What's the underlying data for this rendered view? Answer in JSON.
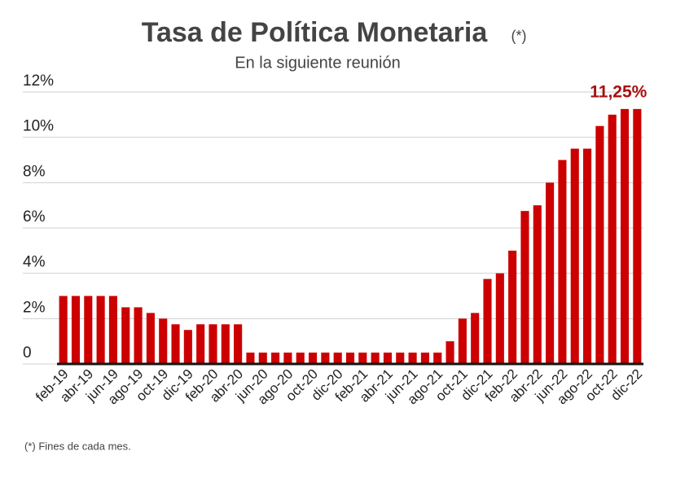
{
  "chart_data": {
    "type": "bar",
    "title": "Tasa de Política Monetaria",
    "title_note": "(*)",
    "subtitle": "En la siguiente reunión",
    "footnote": "(*) Fines de cada mes.",
    "color": "#cc0000",
    "grid": true,
    "categories": [
      "feb-19",
      null,
      "abr-19",
      null,
      "jun-19",
      null,
      "ago-19",
      null,
      "oct-19",
      null,
      "dic-19",
      null,
      "feb-20",
      null,
      "abr-20",
      null,
      "jun-20",
      null,
      "ago-20",
      null,
      "oct-20",
      null,
      "dic-20",
      null,
      "feb-21",
      null,
      "abr-21",
      null,
      "jun-21",
      null,
      "ago-21",
      null,
      "oct-21",
      null,
      "dic-21",
      null,
      "feb-22",
      null,
      "abr-22",
      null,
      "jun-22",
      null,
      "ago-22",
      null,
      "oct-22",
      null,
      "dic-22"
    ],
    "values": [
      3,
      3,
      3,
      3,
      3,
      2.5,
      2.5,
      2.25,
      2,
      1.75,
      1.5,
      1.75,
      1.75,
      1.75,
      1.75,
      0.5,
      0.5,
      0.5,
      0.5,
      0.5,
      0.5,
      0.5,
      0.5,
      0.5,
      0.5,
      0.5,
      0.5,
      0.5,
      0.5,
      0.5,
      0.5,
      1,
      2,
      2.25,
      3.75,
      4,
      5,
      6.75,
      7,
      8,
      9,
      9.5,
      9.5,
      10.5,
      11,
      11.25,
      11.25
    ],
    "value_labels": [
      null,
      null,
      null,
      null,
      null,
      null,
      null,
      null,
      null,
      null,
      null,
      null,
      null,
      null,
      null,
      null,
      null,
      null,
      null,
      null,
      null,
      null,
      null,
      null,
      null,
      null,
      null,
      null,
      null,
      null,
      null,
      null,
      null,
      null,
      null,
      null,
      null,
      null,
      null,
      null,
      null,
      null,
      null,
      null,
      null,
      null,
      "11,25%"
    ],
    "ylim": [
      0,
      12
    ],
    "yticks": [
      0,
      {
        "value": 2,
        "label": "2%"
      },
      {
        "value": 4,
        "label": "4%"
      },
      {
        "value": 6,
        "label": "6%"
      },
      {
        "value": 8,
        "label": "8%"
      },
      {
        "value": 10,
        "label": "10%"
      },
      {
        "value": 12,
        "label": "12%"
      }
    ]
  }
}
